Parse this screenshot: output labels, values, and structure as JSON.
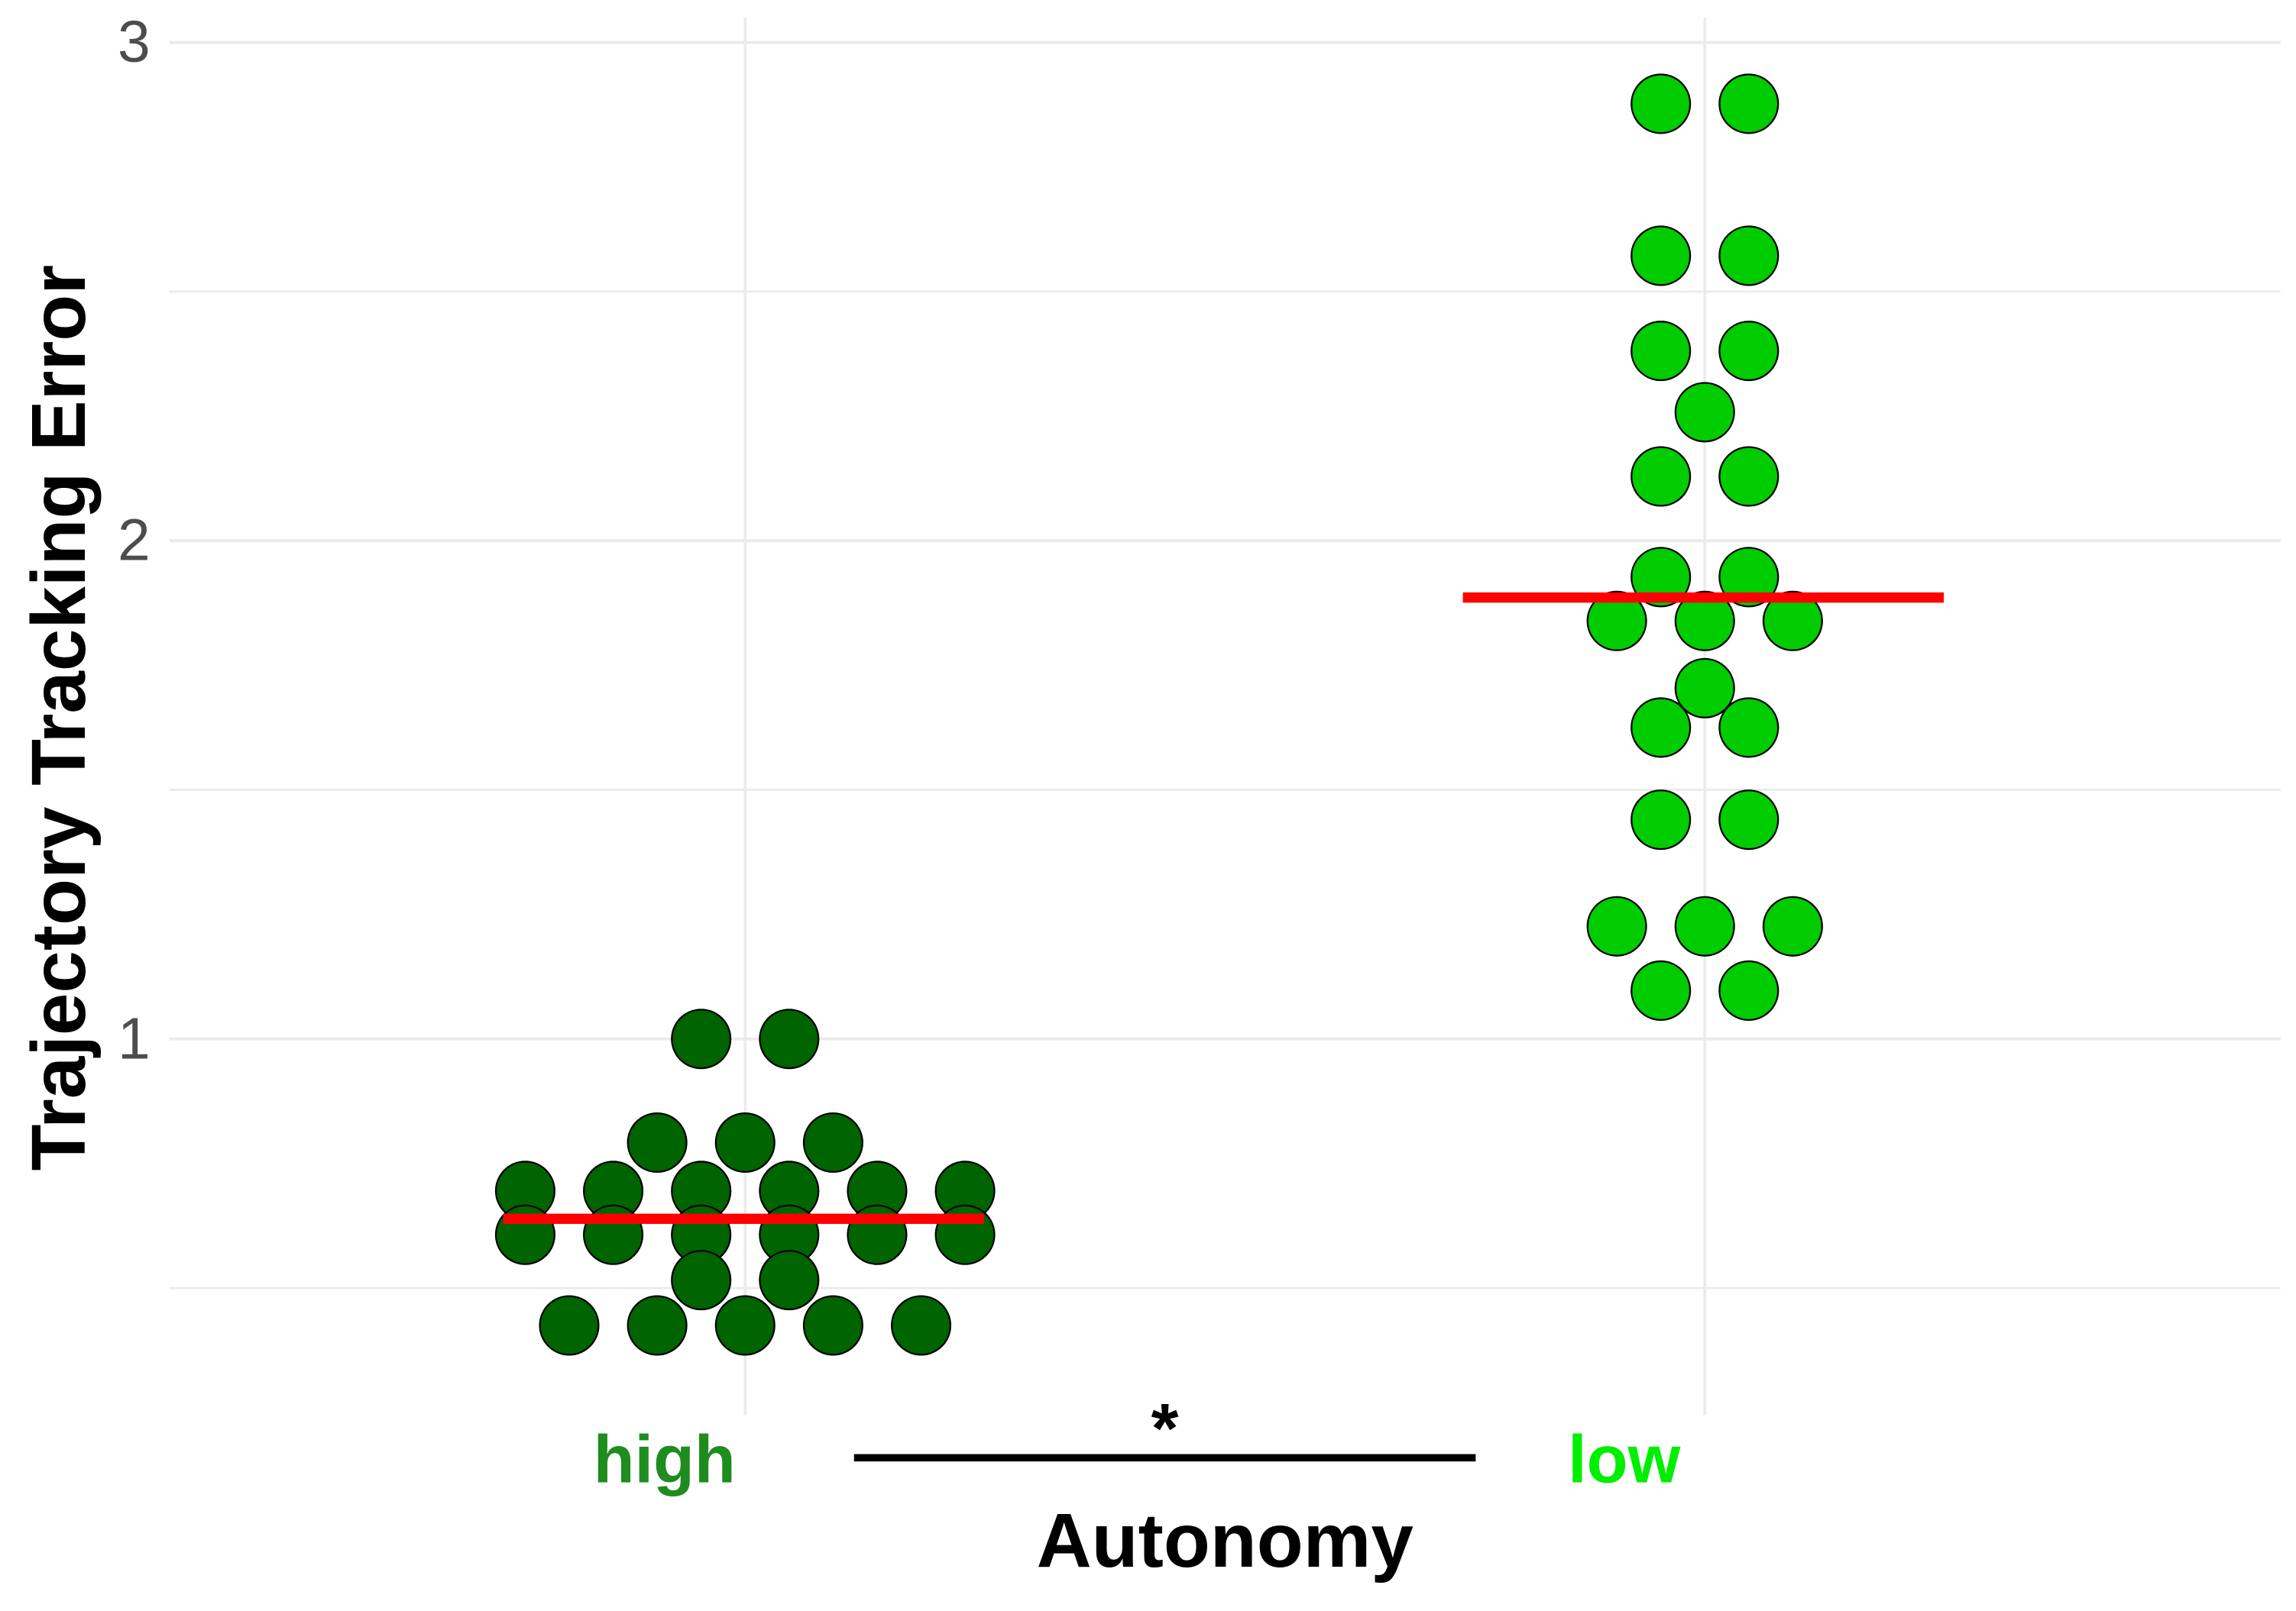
{
  "chart_data": {
    "type": "dotplot",
    "x_label": "Autonomy",
    "y_label": "Trajectory Tracking Error",
    "categories": [
      "high",
      "low"
    ],
    "category_colors": [
      "#1e8c1e",
      "#00ee00"
    ],
    "dot_colors": [
      "#006400",
      "#00cc00"
    ],
    "values": [
      [
        1.0,
        1.0,
        0.792,
        0.792,
        0.792,
        0.695,
        0.695,
        0.695,
        0.695,
        0.695,
        0.695,
        0.607,
        0.607,
        0.607,
        0.607,
        0.607,
        0.607,
        0.516,
        0.516,
        0.425,
        0.425,
        0.425,
        0.425,
        0.425
      ],
      [
        2.877,
        2.877,
        2.572,
        2.572,
        2.381,
        2.381,
        2.258,
        2.129,
        2.129,
        1.927,
        1.927,
        1.839,
        1.839,
        1.839,
        1.704,
        1.625,
        1.625,
        1.44,
        1.44,
        1.226,
        1.226,
        1.226,
        1.097,
        1.097
      ]
    ],
    "means": [
      0.639,
      1.886
    ],
    "mean_color": "#ff0000",
    "annotation": "*",
    "ylim": [
      0.28,
      3.05
    ],
    "yticks": [
      1,
      2,
      3
    ],
    "minor_yticks": [
      0.5,
      1.5,
      2.5
    ],
    "grid": true
  }
}
